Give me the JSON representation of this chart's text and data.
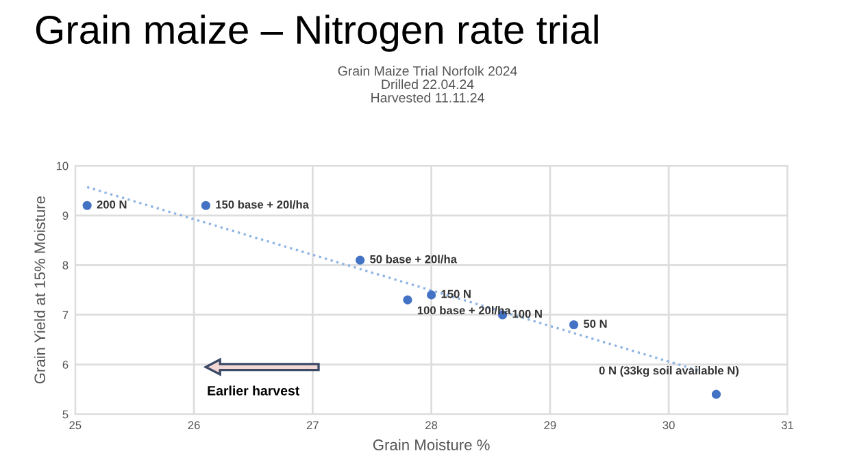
{
  "chart_data": {
    "type": "scatter",
    "title": "Grain maize – Nitrogen rate trial",
    "subtitle": "Grain Maize Trial Norfolk 2024\nDrilled 22.04.24\nHarvested 11.11.24",
    "xlabel": "Grain Moisture %",
    "ylabel": "Grain Yield at 15% Moisture",
    "series": [
      {
        "color": "#4472c4",
        "marker": "circle",
        "x": [
          25.1,
          26.1,
          27.4,
          27.8,
          28.0,
          28.6,
          29.2,
          30.4
        ],
        "values": [
          9.2,
          9.2,
          8.1,
          7.3,
          7.4,
          7.0,
          6.8,
          5.4
        ]
      },
      {
        "type": "line",
        "color": "#8fb4e3",
        "line_style": "dotted",
        "marker": "none",
        "x": [
          25.1,
          30.25
        ],
        "values": [
          9.57,
          5.88
        ]
      }
    ],
    "annotations": [
      {
        "text": "200 N",
        "x": 25.1,
        "y": 9.2
      },
      {
        "text": "150 base + 20l/ha",
        "x": 26.1,
        "y": 9.2
      },
      {
        "text": "50 base + 20l/ha",
        "x": 27.4,
        "y": 8.1
      },
      {
        "text": "100 base + 20l/ha",
        "x": 27.8,
        "y": 7.3
      },
      {
        "text": "150 N",
        "x": 28.0,
        "y": 7.4
      },
      {
        "text": "100 N",
        "x": 28.6,
        "y": 7.0
      },
      {
        "text": "50 N",
        "x": 29.2,
        "y": 6.8
      },
      {
        "text": "0 N (33kg soil available N)",
        "x": 30.4,
        "y": 5.4
      },
      "Earlier harvest"
    ],
    "xlim": [
      25,
      31
    ],
    "xticks": [
      25,
      26,
      27,
      28,
      29,
      30,
      31
    ],
    "ylim": [
      5,
      10
    ],
    "yticks": [
      5,
      6,
      7,
      8,
      9,
      10
    ],
    "grid": true
  }
}
